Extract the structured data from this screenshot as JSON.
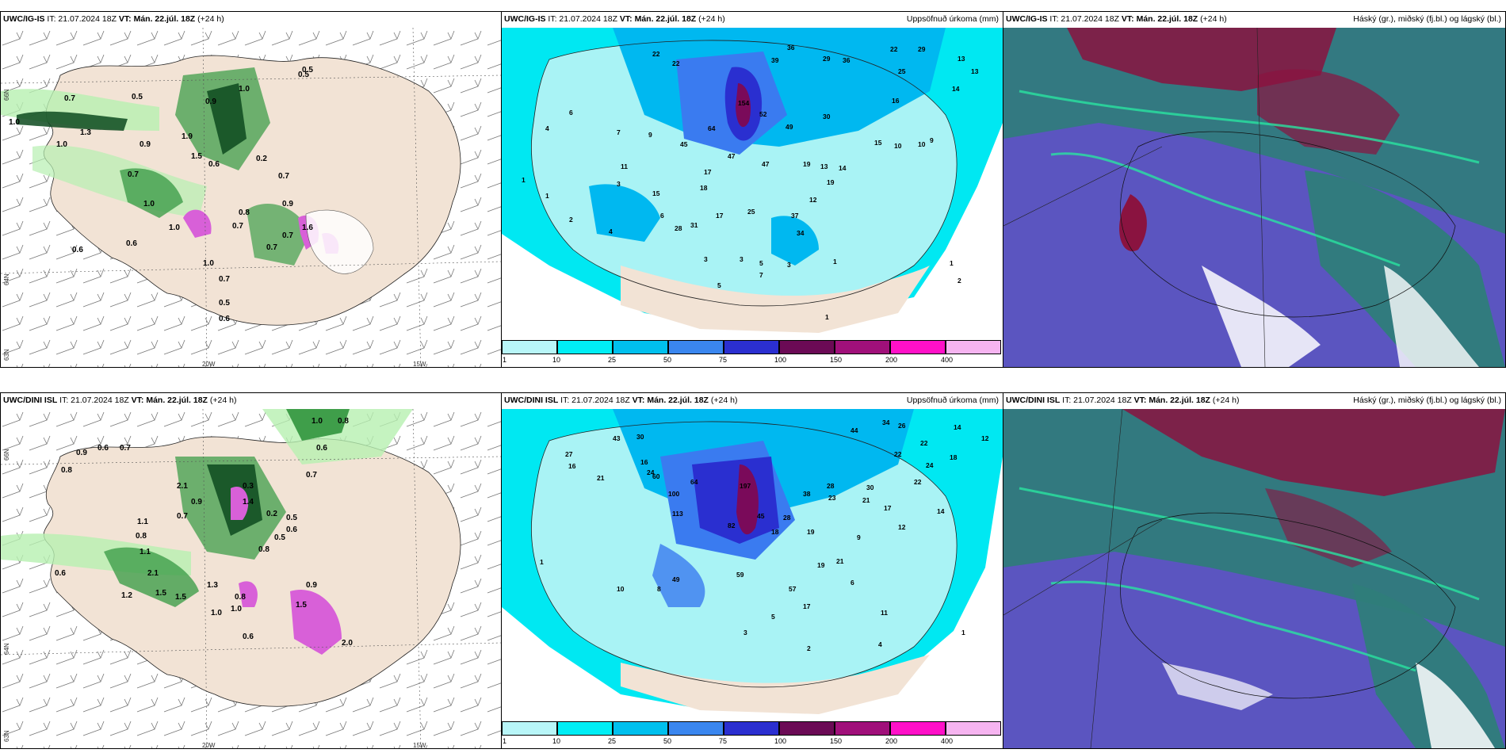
{
  "colors": {
    "land": "#f2e3d5",
    "precip_light": "#a9f3f5",
    "precip_cyan": "#00e8f2",
    "precip_blue": "#00b8f0",
    "precip_mid": "#3a7bf0",
    "precip_dark": "#2a2fd0",
    "precip_purple": "#7a0a5a",
    "green_light": "#b6f0b0",
    "green_mid": "#3f9e4a",
    "green_dark": "#0d4a1e",
    "magenta": "#d860d8",
    "cloud_purple": "#5b55c0",
    "cloud_teal": "#2f7d7a",
    "cloud_red": "#8a1340"
  },
  "panels": {
    "top_left": {
      "model": "UWC/IG-IS",
      "it_label": "IT: 21.07.2024 18Z",
      "vt_label": "VT: Mán. 22.júl. 18Z",
      "lead": "(+24 h)"
    },
    "top_mid": {
      "model": "UWC/IG-IS",
      "it_label": "IT: 21.07.2024 18Z",
      "vt_label": "VT: Mán. 22.júl. 18Z",
      "lead": "(+24 h)",
      "right_title": "Uppsöfnuð úrkoma (mm)"
    },
    "top_right": {
      "model": "UWC/IG-IS",
      "it_label": "IT: 21.07.2024 18Z",
      "vt_label": "VT: Mán. 22.júl. 18Z",
      "lead": "(+24 h)",
      "right_title": "Háský (gr.), miðský (fj.bl.) og lágský (bl.)"
    },
    "bot_left": {
      "model": "UWC/DINI ISL",
      "it_label": "IT: 21.07.2024 18Z",
      "vt_label": "VT: Mán. 22.júl. 18Z",
      "lead": "(+24 h)"
    },
    "bot_mid": {
      "model": "UWC/DINI ISL",
      "it_label": "IT: 21.07.2024 18Z",
      "vt_label": "VT: Mán. 22.júl. 18Z",
      "lead": "(+24 h)",
      "right_title": "Uppsöfnuð úrkoma (mm)"
    },
    "bot_right": {
      "model": "UWC/DINI ISL",
      "it_label": "IT: 21.07.2024 18Z",
      "vt_label": "VT: Mán. 22.júl. 18Z",
      "lead": "(+24 h)",
      "right_title": "Háský (gr.), miðský (fj.bl.) og lágský (bl.)"
    }
  },
  "axis_labels": {
    "lon1": "20W",
    "lon2": "15W",
    "lat1": "66N",
    "lat2": "64N",
    "lat3": "63N"
  },
  "colorbar": {
    "levels": [
      "1",
      "10",
      "25",
      "50",
      "75",
      "100",
      "150",
      "200",
      "400"
    ],
    "colors": [
      "#b8f6f8",
      "#00eef5",
      "#00c0ee",
      "#3a86ef",
      "#2b2fd0",
      "#6b0a55",
      "#a0107a",
      "#ff10c8",
      "#f6b4f0"
    ]
  },
  "map_labels": {
    "top_left": [
      "0.5",
      "0.7",
      "0.5",
      "0.9",
      "1.0",
      "0.9",
      "1.0",
      "1.3",
      "0.7",
      "0.6",
      "1.0",
      "0.7",
      "0.7",
      "0.6",
      "1.5",
      "1.0",
      "0.5",
      "1.0",
      "0.7",
      "0.7",
      "0.5",
      "0.6",
      "0.6",
      "0.8",
      "0.2",
      "1.6",
      "0.9",
      "1.0",
      "1.9",
      "0.7"
    ],
    "top_mid": [
      "22",
      "22",
      "39",
      "36",
      "29",
      "36",
      "22",
      "29",
      "25",
      "13",
      "14",
      "16",
      "13",
      "10",
      "6",
      "7",
      "9",
      "45",
      "64",
      "154",
      "52",
      "49",
      "47",
      "47",
      "30",
      "17",
      "18",
      "19",
      "13",
      "14",
      "15",
      "10",
      "9",
      "1",
      "1",
      "4",
      "11",
      "15",
      "6",
      "25",
      "17",
      "28",
      "31",
      "12",
      "19",
      "37",
      "34",
      "3",
      "2",
      "4",
      "3",
      "5",
      "3",
      "1",
      "3",
      "7",
      "5",
      "1",
      "2",
      "1"
    ],
    "bot_left": [
      "0.9",
      "0.6",
      "0.7",
      "0.8",
      "1.0",
      "0.8",
      "0.6",
      "0.7",
      "2.1",
      "0.3",
      "1.4",
      "0.2",
      "0.5",
      "0.6",
      "0.8",
      "1.1",
      "0.7",
      "0.9",
      "0.8",
      "1.1",
      "2.1",
      "1.5",
      "0.5",
      "0.6",
      "1.2",
      "1.5",
      "1.3",
      "1.0",
      "1.0",
      "0.8",
      "0.9",
      "0.6",
      "1.5",
      "2.0"
    ],
    "bot_mid": [
      "30",
      "44",
      "34",
      "26",
      "22",
      "14",
      "12",
      "22",
      "24",
      "18",
      "43",
      "60",
      "27",
      "16",
      "21",
      "16",
      "24",
      "100",
      "64",
      "197",
      "113",
      "82",
      "45",
      "28",
      "18",
      "38",
      "28",
      "23",
      "30",
      "21",
      "17",
      "12",
      "14",
      "22",
      "19",
      "9",
      "8",
      "59",
      "49",
      "57",
      "21",
      "19",
      "10",
      "11",
      "17",
      "6",
      "5",
      "2",
      "4",
      "3",
      "1",
      "1"
    ]
  }
}
